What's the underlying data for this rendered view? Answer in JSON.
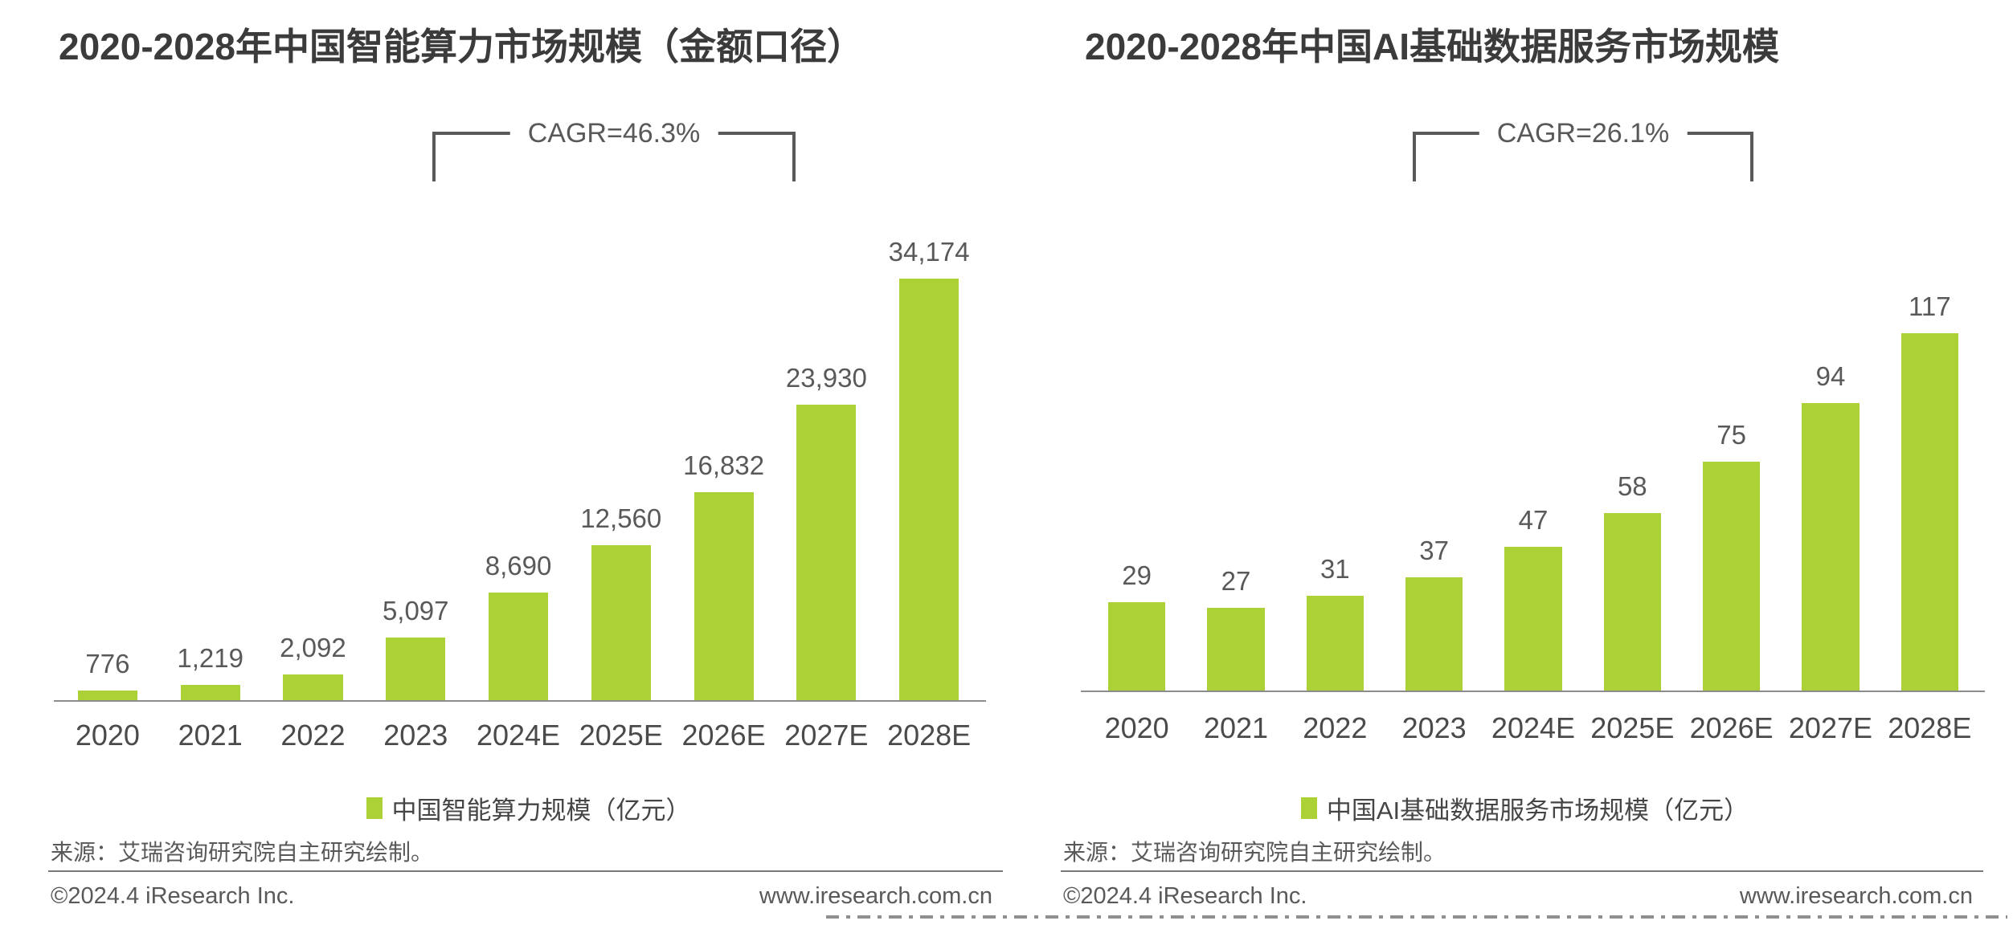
{
  "colors": {
    "bar_green": "#abd137",
    "text_gray": "#595959",
    "title_gray": "#3b3b3b"
  },
  "chart_data": [
    {
      "type": "bar",
      "title": "2020-2028年中国智能算力市场规模（金额口径）",
      "cagr_label": "CAGR=46.3%",
      "categories": [
        "2020",
        "2021",
        "2022",
        "2023",
        "2024E",
        "2025E",
        "2026E",
        "2027E",
        "2028E"
      ],
      "values": [
        776,
        1219,
        2092,
        5097,
        8690,
        12560,
        16832,
        23930,
        34174
      ],
      "value_labels": [
        "776",
        "1,219",
        "2,092",
        "5,097",
        "8,690",
        "12,560",
        "16,832",
        "23,930",
        "34,174"
      ],
      "legend": "中国智能算力规模（亿元）",
      "xlabel": "",
      "ylabel": "",
      "ylim": [
        0,
        34174
      ],
      "grid": false,
      "legend_position": "bottom",
      "bar_color": "#abd137"
    },
    {
      "type": "bar",
      "title": "2020-2028年中国AI基础数据服务市场规模",
      "cagr_label": "CAGR=26.1%",
      "categories": [
        "2020",
        "2021",
        "2022",
        "2023",
        "2024E",
        "2025E",
        "2026E",
        "2027E",
        "2028E"
      ],
      "values": [
        29,
        27,
        31,
        37,
        47,
        58,
        75,
        94,
        117
      ],
      "value_labels": [
        "29",
        "27",
        "31",
        "37",
        "47",
        "58",
        "75",
        "94",
        "117"
      ],
      "legend": "中国AI基础数据服务市场规模（亿元）",
      "xlabel": "",
      "ylabel": "",
      "ylim": [
        0,
        117
      ],
      "grid": false,
      "legend_position": "bottom",
      "bar_color": "#abd137"
    }
  ],
  "panels": [
    {
      "source": "来源：艾瑞咨询研究院自主研究绘制。",
      "footer_left": "©2024.4 iResearch Inc.",
      "footer_right": "www.iresearch.com.cn"
    },
    {
      "source": "来源：艾瑞咨询研究院自主研究绘制。",
      "footer_left": "©2024.4 iResearch Inc.",
      "footer_right": "www.iresearch.com.cn"
    }
  ]
}
